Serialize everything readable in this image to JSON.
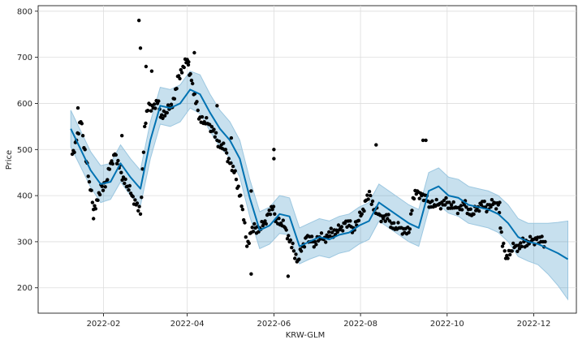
{
  "chart_data": {
    "type": "line",
    "title": "",
    "xlabel": "KRW-GLM",
    "ylabel": "Price",
    "grid": true,
    "legend": "none",
    "xlim": [
      "2021-12-17",
      "2022-12-31"
    ],
    "ylim": [
      145,
      812
    ],
    "x_ticks": [
      "2022-02-01",
      "2022-04-01",
      "2022-06-01",
      "2022-08-01",
      "2022-10-01",
      "2022-12-01"
    ],
    "x_tick_labels": [
      "2022-02",
      "2022-04",
      "2022-06",
      "2022-08",
      "2022-10",
      "2022-12"
    ],
    "y_ticks": [
      200,
      300,
      400,
      500,
      600,
      700,
      800
    ],
    "colors": {
      "forecast_line": "#0072B2",
      "uncertainty_band": "#0072B2",
      "observed_points": "#000000",
      "grid": "#dddddd"
    },
    "series": [
      {
        "kind": "observed",
        "x": [
          "2022-01-10",
          "2022-01-13",
          "2022-01-16",
          "2022-01-19",
          "2022-01-22",
          "2022-01-25",
          "2022-01-28",
          "2022-01-31",
          "2022-02-03",
          "2022-02-06",
          "2022-02-09",
          "2022-02-12",
          "2022-02-15",
          "2022-02-18",
          "2022-02-21",
          "2022-02-24",
          "2022-02-27",
          "2022-03-02",
          "2022-03-05",
          "2022-03-08",
          "2022-03-11",
          "2022-03-14",
          "2022-03-17",
          "2022-03-20",
          "2022-03-23",
          "2022-03-26",
          "2022-03-29",
          "2022-04-01",
          "2022-04-04",
          "2022-04-07",
          "2022-04-10",
          "2022-04-13",
          "2022-04-16",
          "2022-04-19",
          "2022-04-22",
          "2022-04-25",
          "2022-04-28",
          "2022-05-01",
          "2022-05-04",
          "2022-05-07",
          "2022-05-10",
          "2022-05-13",
          "2022-05-16",
          "2022-05-19",
          "2022-05-22",
          "2022-05-25",
          "2022-05-28",
          "2022-05-31",
          "2022-06-03",
          "2022-06-06",
          "2022-06-09",
          "2022-06-12",
          "2022-06-15",
          "2022-06-18",
          "2022-06-21",
          "2022-06-24",
          "2022-06-27",
          "2022-06-30",
          "2022-07-03",
          "2022-07-06",
          "2022-07-09",
          "2022-07-12",
          "2022-07-15",
          "2022-07-18",
          "2022-07-21",
          "2022-07-24",
          "2022-07-27",
          "2022-07-30",
          "2022-08-02",
          "2022-08-05",
          "2022-08-08",
          "2022-08-11",
          "2022-08-14",
          "2022-08-17",
          "2022-08-20",
          "2022-08-23",
          "2022-08-26",
          "2022-08-29",
          "2022-09-01",
          "2022-09-04",
          "2022-09-07",
          "2022-09-10",
          "2022-09-13",
          "2022-09-16",
          "2022-09-19",
          "2022-09-22",
          "2022-09-25",
          "2022-09-28",
          "2022-10-01",
          "2022-10-04",
          "2022-10-07",
          "2022-10-10",
          "2022-10-13",
          "2022-10-16",
          "2022-10-19",
          "2022-10-22",
          "2022-10-25",
          "2022-10-28",
          "2022-10-31",
          "2022-11-03",
          "2022-11-06",
          "2022-11-09",
          "2022-11-12",
          "2022-11-15",
          "2022-11-18",
          "2022-11-21",
          "2022-11-24",
          "2022-11-27",
          "2022-11-30",
          "2022-12-03",
          "2022-12-06",
          "2022-12-09"
        ],
        "y": [
          490,
          520,
          560,
          500,
          430,
          370,
          390,
          420,
          430,
          470,
          490,
          460,
          440,
          420,
          400,
          380,
          360,
          550,
          600,
          590,
          600,
          575,
          580,
          590,
          610,
          660,
          680,
          695,
          650,
          600,
          570,
          560,
          555,
          540,
          520,
          510,
          500,
          470,
          450,
          420,
          370,
          290,
          320,
          330,
          330,
          340,
          360,
          370,
          350,
          340,
          330,
          300,
          280,
          260,
          290,
          310,
          300,
          300,
          310,
          305,
          310,
          320,
          325,
          330,
          340,
          335,
          330,
          345,
          360,
          390,
          400,
          370,
          360,
          350,
          350,
          340,
          330,
          330,
          320,
          320,
          395,
          410,
          400,
          390,
          385,
          380,
          380,
          380,
          385,
          380,
          375,
          370,
          380,
          370,
          360,
          370,
          380,
          375,
          380,
          385,
          380,
          290,
          270,
          280,
          290,
          285,
          300,
          300,
          305,
          305,
          300,
          300
        ]
      },
      {
        "kind": "observed_spikes",
        "x": [
          "2022-01-14",
          "2022-01-25",
          "2022-02-14",
          "2022-02-26",
          "2022-02-27",
          "2022-03-03",
          "2022-03-07",
          "2022-04-02",
          "2022-04-06",
          "2022-04-22",
          "2022-05-02",
          "2022-05-16",
          "2022-05-16",
          "2022-06-01",
          "2022-06-01",
          "2022-06-11",
          "2022-08-12",
          "2022-09-14",
          "2022-09-16",
          "2022-11-07"
        ],
        "y": [
          590,
          350,
          530,
          780,
          720,
          680,
          670,
          690,
          710,
          595,
          525,
          410,
          230,
          500,
          480,
          225,
          510,
          520,
          520,
          385
        ]
      },
      {
        "kind": "forecast",
        "x": [
          "2022-01-09",
          "2022-01-16",
          "2022-01-23",
          "2022-01-30",
          "2022-02-06",
          "2022-02-13",
          "2022-02-20",
          "2022-02-27",
          "2022-03-06",
          "2022-03-13",
          "2022-03-20",
          "2022-03-27",
          "2022-04-03",
          "2022-04-10",
          "2022-04-17",
          "2022-04-24",
          "2022-05-01",
          "2022-05-08",
          "2022-05-15",
          "2022-05-22",
          "2022-05-29",
          "2022-06-05",
          "2022-06-12",
          "2022-06-19",
          "2022-06-26",
          "2022-07-03",
          "2022-07-10",
          "2022-07-17",
          "2022-07-24",
          "2022-07-31",
          "2022-08-07",
          "2022-08-14",
          "2022-08-21",
          "2022-08-28",
          "2022-09-04",
          "2022-09-11",
          "2022-09-18",
          "2022-09-25",
          "2022-10-02",
          "2022-10-09",
          "2022-10-16",
          "2022-10-23",
          "2022-10-30",
          "2022-11-06",
          "2022-11-13",
          "2022-11-20",
          "2022-11-27",
          "2022-12-04",
          "2022-12-11",
          "2022-12-18",
          "2022-12-25"
        ],
        "yhat": [
          545,
          500,
          455,
          425,
          430,
          470,
          440,
          415,
          520,
          595,
          590,
          600,
          630,
          620,
          580,
          545,
          520,
          480,
          395,
          325,
          335,
          360,
          355,
          290,
          300,
          310,
          305,
          315,
          320,
          335,
          345,
          385,
          370,
          355,
          340,
          330,
          410,
          420,
          400,
          395,
          380,
          375,
          370,
          360,
          340,
          310,
          300,
          295,
          285,
          275,
          262
        ],
        "yhat_lower": [
          505,
          462,
          418,
          385,
          392,
          430,
          400,
          378,
          480,
          555,
          550,
          560,
          590,
          578,
          540,
          505,
          482,
          440,
          355,
          285,
          295,
          318,
          315,
          252,
          262,
          270,
          265,
          275,
          280,
          295,
          305,
          345,
          330,
          315,
          300,
          290,
          370,
          380,
          362,
          355,
          340,
          335,
          330,
          320,
          300,
          268,
          258,
          250,
          230,
          205,
          175
        ],
        "yhat_upper": [
          585,
          540,
          495,
          465,
          470,
          510,
          480,
          455,
          560,
          635,
          630,
          640,
          670,
          662,
          620,
          585,
          560,
          520,
          435,
          365,
          375,
          400,
          395,
          330,
          340,
          350,
          345,
          355,
          360,
          375,
          385,
          425,
          410,
          395,
          380,
          370,
          450,
          460,
          440,
          435,
          420,
          415,
          410,
          400,
          380,
          350,
          340,
          340,
          340,
          342,
          345
        ]
      }
    ]
  }
}
